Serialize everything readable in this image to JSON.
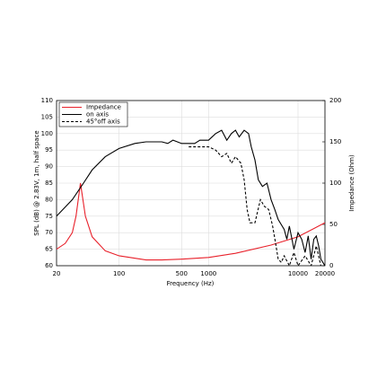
{
  "chart_data": {
    "type": "line",
    "xlabel": "Frequency (Hz)",
    "ylabel": "SPL (dB) @ 2.83V, 1m, half space",
    "y2label": "Impedance (Ohm)",
    "xscale": "log",
    "xlim": [
      20,
      20000
    ],
    "xticks": [
      20,
      100,
      500,
      1000,
      10000,
      20000
    ],
    "ylim": [
      60,
      110
    ],
    "yticks": [
      60,
      65,
      70,
      75,
      80,
      85,
      90,
      95,
      100,
      105,
      110
    ],
    "y2lim": [
      0,
      200
    ],
    "y2ticks": [
      0,
      50,
      100,
      150,
      200
    ],
    "grid": true,
    "legend": "upper left",
    "series": [
      {
        "name": "Impedance",
        "color": "#e8202a",
        "style": "solid",
        "axis": "y2",
        "x": [
          20,
          25,
          30,
          33,
          37,
          42,
          50,
          70,
          100,
          200,
          300,
          500,
          1000,
          2000,
          5000,
          10000,
          20000
        ],
        "values": [
          20,
          27,
          40,
          60,
          100,
          60,
          35,
          18,
          12,
          7,
          7,
          8,
          10,
          15,
          25,
          35,
          52
        ]
      },
      {
        "name": "on axis",
        "color": "#000000",
        "style": "solid",
        "x": [
          20,
          30,
          40,
          50,
          70,
          100,
          150,
          200,
          300,
          350,
          400,
          500,
          700,
          800,
          1000,
          1200,
          1400,
          1600,
          1800,
          2000,
          2200,
          2500,
          2800,
          3000,
          3300,
          3600,
          4000,
          4500,
          5000,
          5500,
          6000,
          7000,
          7500,
          8000,
          9000,
          10000,
          11000,
          12000,
          13000,
          14000,
          15000,
          16000,
          17000,
          18000,
          20000
        ],
        "values": [
          75,
          80,
          85,
          89,
          93,
          95.5,
          97,
          97.5,
          97.5,
          97,
          98,
          97,
          97,
          98,
          98,
          100,
          101,
          98,
          100,
          101,
          99,
          101,
          100,
          96,
          92,
          86,
          84,
          85,
          80,
          77,
          74,
          71,
          68,
          72,
          65,
          70,
          68,
          64,
          69,
          62,
          68,
          69,
          66,
          62,
          60
        ]
      },
      {
        "name": "45°off axis",
        "color": "#000000",
        "style": "dashed",
        "x": [
          600,
          800,
          1000,
          1200,
          1400,
          1600,
          1800,
          2000,
          2300,
          2500,
          2700,
          2900,
          3300,
          3800,
          4200,
          4700,
          5200,
          5600,
          6000,
          6500,
          7000,
          8000,
          9000,
          10000,
          12000,
          14000,
          16000,
          18000
        ],
        "values": [
          96,
          96,
          96,
          95,
          93,
          94,
          91,
          93,
          91,
          86,
          77,
          73,
          73,
          80,
          78,
          77,
          72,
          67,
          62,
          61,
          63,
          60,
          64,
          60,
          63,
          60,
          66,
          60
        ]
      }
    ]
  }
}
